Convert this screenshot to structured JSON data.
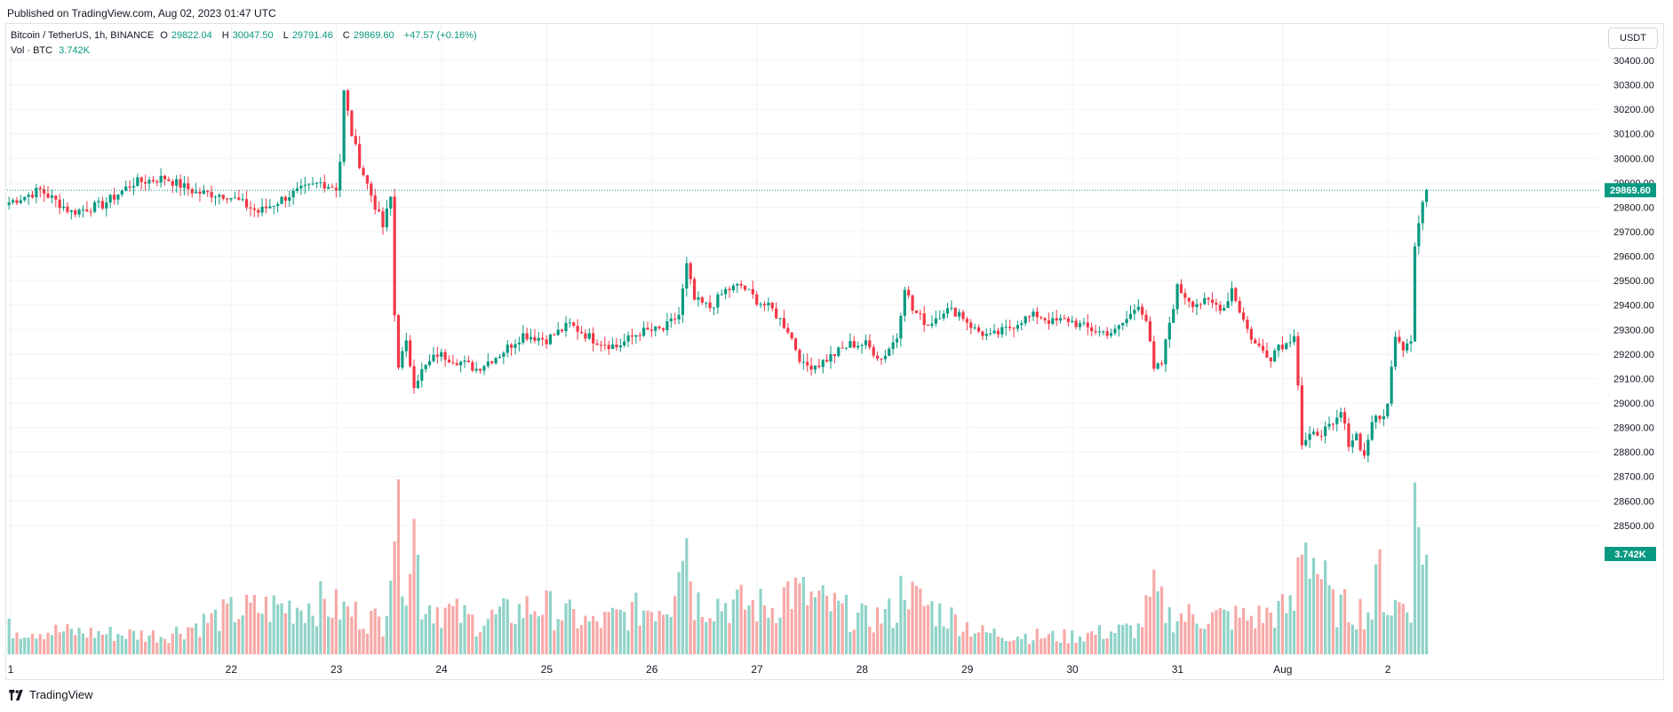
{
  "published": "Published on TradingView.com, Aug 02, 2023 01:47 UTC",
  "legend": {
    "symbol": "Bitcoin / TetherUS, 1h, BINANCE",
    "o_label": "O",
    "o": "29822.04",
    "h_label": "H",
    "h": "30047.50",
    "l_label": "L",
    "l": "29791.46",
    "c_label": "C",
    "c": "29869.60",
    "change": "+47.57 (+0.16%)",
    "vol_label": "Vol · BTC",
    "vol": "3.742K"
  },
  "currency": "USDT",
  "footer": {
    "brand": "TradingView",
    "logo_icon": "tradingview-logo-icon"
  },
  "colors": {
    "up": "#089981",
    "down": "#f23645",
    "up_vol": "#8fd3c8",
    "down_vol": "#f7a9a7",
    "grid": "#f0f3fa"
  },
  "chart_data": {
    "type": "candlestick",
    "interval": "1h",
    "ylim": [
      28400,
      30450
    ],
    "y_ticks": [
      "30400.00",
      "30300.00",
      "30200.00",
      "30100.00",
      "30000.00",
      "29900.00",
      "29800.00",
      "29700.00",
      "29600.00",
      "29500.00",
      "29400.00",
      "29300.00",
      "29200.00",
      "29100.00",
      "29000.00",
      "28900.00",
      "28800.00",
      "28700.00",
      "28600.00",
      "28500.00"
    ],
    "x_ticks": [
      "1",
      "22",
      "23",
      "24",
      "25",
      "26",
      "27",
      "28",
      "29",
      "30",
      "31",
      "Aug",
      "2"
    ],
    "last_price": "29869.60",
    "last_volume": "3.742K",
    "price_path": [
      [
        0,
        29820
      ],
      [
        8,
        29870
      ],
      [
        16,
        29780
      ],
      [
        24,
        29810
      ],
      [
        32,
        29900
      ],
      [
        40,
        29920
      ],
      [
        48,
        29860
      ],
      [
        56,
        29850
      ],
      [
        64,
        29780
      ],
      [
        72,
        29850
      ],
      [
        80,
        29900
      ],
      [
        84,
        29880
      ],
      [
        85,
        29990
      ],
      [
        86,
        30270
      ],
      [
        88,
        30100
      ],
      [
        90,
        29980
      ],
      [
        93,
        29850
      ],
      [
        96,
        29720
      ],
      [
        98,
        29840
      ],
      [
        99,
        29360
      ],
      [
        100,
        29160
      ],
      [
        102,
        29240
      ],
      [
        104,
        29080
      ],
      [
        106,
        29130
      ],
      [
        110,
        29200
      ],
      [
        114,
        29180
      ],
      [
        120,
        29140
      ],
      [
        126,
        29200
      ],
      [
        132,
        29280
      ],
      [
        138,
        29260
      ],
      [
        144,
        29320
      ],
      [
        150,
        29260
      ],
      [
        156,
        29230
      ],
      [
        162,
        29290
      ],
      [
        168,
        29300
      ],
      [
        172,
        29360
      ],
      [
        174,
        29560
      ],
      [
        176,
        29420
      ],
      [
        180,
        29390
      ],
      [
        184,
        29460
      ],
      [
        188,
        29480
      ],
      [
        192,
        29420
      ],
      [
        196,
        29380
      ],
      [
        200,
        29300
      ],
      [
        204,
        29150
      ],
      [
        208,
        29160
      ],
      [
        212,
        29200
      ],
      [
        216,
        29240
      ],
      [
        220,
        29240
      ],
      [
        224,
        29180
      ],
      [
        228,
        29270
      ],
      [
        230,
        29480
      ],
      [
        232,
        29380
      ],
      [
        236,
        29320
      ],
      [
        240,
        29380
      ],
      [
        244,
        29370
      ],
      [
        248,
        29300
      ],
      [
        252,
        29270
      ],
      [
        256,
        29300
      ],
      [
        260,
        29340
      ],
      [
        264,
        29360
      ],
      [
        268,
        29330
      ],
      [
        272,
        29340
      ],
      [
        276,
        29310
      ],
      [
        280,
        29290
      ],
      [
        284,
        29290
      ],
      [
        288,
        29360
      ],
      [
        290,
        29410
      ],
      [
        292,
        29340
      ],
      [
        294,
        29130
      ],
      [
        296,
        29160
      ],
      [
        298,
        29330
      ],
      [
        300,
        29470
      ],
      [
        304,
        29410
      ],
      [
        308,
        29410
      ],
      [
        312,
        29390
      ],
      [
        314,
        29470
      ],
      [
        316,
        29380
      ],
      [
        318,
        29300
      ],
      [
        320,
        29240
      ],
      [
        324,
        29190
      ],
      [
        326,
        29240
      ],
      [
        328,
        29240
      ],
      [
        330,
        29290
      ],
      [
        331,
        29080
      ],
      [
        332,
        28830
      ],
      [
        336,
        28880
      ],
      [
        340,
        28900
      ],
      [
        342,
        28960
      ],
      [
        344,
        28840
      ],
      [
        346,
        28870
      ],
      [
        348,
        28780
      ],
      [
        350,
        28930
      ],
      [
        352,
        28930
      ],
      [
        354,
        28990
      ],
      [
        356,
        29290
      ],
      [
        358,
        29230
      ],
      [
        360,
        29270
      ],
      [
        361,
        29650
      ],
      [
        363,
        29820
      ],
      [
        364,
        29870
      ]
    ],
    "volume_envelope": [
      [
        0,
        0.12
      ],
      [
        20,
        0.1
      ],
      [
        40,
        0.09
      ],
      [
        58,
        0.2
      ],
      [
        80,
        0.24
      ],
      [
        96,
        0.15
      ],
      [
        99,
        0.65
      ],
      [
        102,
        0.4
      ],
      [
        104,
        0.6
      ],
      [
        106,
        0.25
      ],
      [
        120,
        0.15
      ],
      [
        136,
        0.23
      ],
      [
        150,
        0.14
      ],
      [
        170,
        0.25
      ],
      [
        172,
        0.55
      ],
      [
        174,
        0.55
      ],
      [
        176,
        0.25
      ],
      [
        196,
        0.22
      ],
      [
        200,
        0.3
      ],
      [
        220,
        0.16
      ],
      [
        228,
        0.2
      ],
      [
        230,
        0.38
      ],
      [
        232,
        0.26
      ],
      [
        250,
        0.1
      ],
      [
        270,
        0.08
      ],
      [
        290,
        0.12
      ],
      [
        294,
        0.28
      ],
      [
        298,
        0.18
      ],
      [
        320,
        0.17
      ],
      [
        330,
        0.22
      ],
      [
        332,
        0.6
      ],
      [
        340,
        0.22
      ],
      [
        350,
        0.2
      ],
      [
        352,
        0.4
      ],
      [
        354,
        0.22
      ],
      [
        360,
        0.25
      ],
      [
        361,
        0.65
      ],
      [
        363,
        0.55
      ],
      [
        364,
        0.45
      ]
    ]
  }
}
